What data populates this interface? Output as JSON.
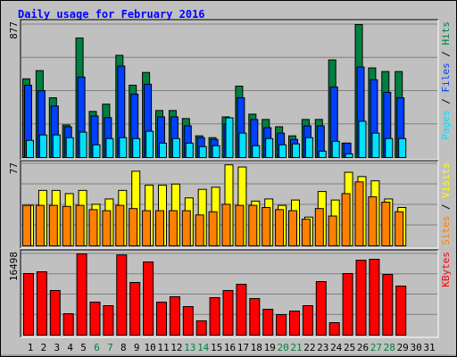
{
  "title": "Daily usage for February 2016",
  "legend_separator": " / ",
  "categories": [
    "1",
    "2",
    "3",
    "4",
    "5",
    "6",
    "7",
    "8",
    "9",
    "10",
    "11",
    "12",
    "13",
    "14",
    "15",
    "16",
    "17",
    "18",
    "19",
    "20",
    "21",
    "22",
    "23",
    "24",
    "25",
    "26",
    "27",
    "28",
    "29",
    "30",
    "31"
  ],
  "category_colors": [
    "#000000",
    "#000000",
    "#000000",
    "#000000",
    "#000000",
    "#008040",
    "#008040",
    "#000000",
    "#000000",
    "#000000",
    "#000000",
    "#000000",
    "#008040",
    "#008040",
    "#000000",
    "#000000",
    "#000000",
    "#000000",
    "#000000",
    "#008040",
    "#008040",
    "#000000",
    "#000000",
    "#000000",
    "#000000",
    "#000000",
    "#008040",
    "#008040",
    "#000000",
    "#000000",
    "#000000"
  ],
  "chart_data": [
    {
      "type": "bar",
      "ylim": [
        0,
        877
      ],
      "yticks": [
        877
      ],
      "grid": true,
      "series": [
        {
          "name": "Hits",
          "color": "#008040",
          "values": [
            519,
            573,
            394,
            215,
            788,
            304,
            352,
            674,
            477,
            561,
            310,
            310,
            257,
            143,
            131,
            268,
            471,
            286,
            251,
            203,
            143,
            251,
            251,
            644,
            95,
            877,
            591,
            567,
            567,
            null,
            null
          ]
        },
        {
          "name": "Files",
          "color": "#0040ff",
          "values": [
            477,
            441,
            340,
            203,
            531,
            274,
            263,
            603,
            418,
            483,
            268,
            268,
            209,
            131,
            119,
            221,
            394,
            251,
            197,
            161,
            119,
            209,
            209,
            465,
            95,
            597,
            513,
            430,
            394,
            null,
            null
          ]
        },
        {
          "name": "Pages",
          "color": "#00e0ff",
          "values": [
            113,
            149,
            149,
            131,
            167,
            84,
            125,
            131,
            125,
            173,
            95,
            125,
            95,
            72,
            78,
            262,
            161,
            78,
            125,
            84,
            90,
            131,
            42,
            107,
            24,
            239,
            161,
            125,
            125,
            null,
            null
          ]
        }
      ]
    },
    {
      "type": "bar",
      "ylim": [
        0,
        77
      ],
      "yticks": [
        77
      ],
      "grid": true,
      "series": [
        {
          "name": "Visits",
          "color": "#ffff00",
          "values": [
            38,
            52,
            52,
            49,
            52,
            39,
            44,
            52,
            70,
            57,
            57,
            58,
            45,
            53,
            55,
            76,
            74,
            42,
            44,
            38,
            43,
            27,
            51,
            43,
            69,
            65,
            61,
            44,
            36,
            null,
            null
          ]
        },
        {
          "name": "Sites",
          "color": "#ff8000",
          "values": [
            38,
            38,
            38,
            37,
            38,
            34,
            33,
            38,
            35,
            33,
            33,
            33,
            33,
            29,
            32,
            39,
            38,
            38,
            36,
            34,
            33,
            25,
            35,
            28,
            49,
            60,
            46,
            41,
            32,
            null,
            null
          ]
        }
      ]
    },
    {
      "type": "bar",
      "ylim": [
        0,
        16498
      ],
      "yticks": [
        16498
      ],
      "grid": true,
      "series": [
        {
          "name": "KBytes",
          "color": "#ff0000",
          "values": [
            12510,
            12872,
            9065,
            4351,
            16498,
            6708,
            5983,
            16300,
            10696,
            14866,
            6708,
            7796,
            5801,
            2901,
            7614,
            9065,
            10334,
            7433,
            5258,
            4170,
            4895,
            5983,
            10878,
            2538,
            12510,
            15229,
            15410,
            12328,
            9971,
            null,
            null
          ]
        }
      ]
    }
  ]
}
